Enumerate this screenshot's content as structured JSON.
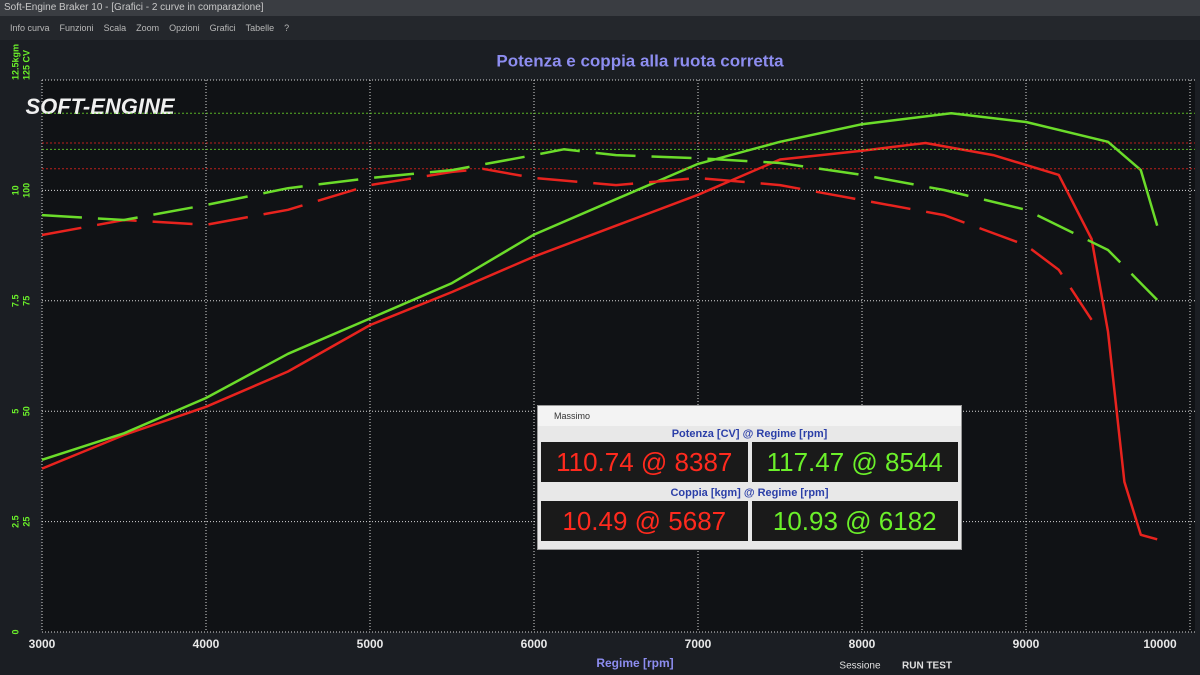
{
  "window": {
    "title": "Soft-Engine Braker 10 - [Grafici - 2 curve in comparazione]",
    "menu": [
      "Info curva",
      "Funzioni",
      "Scala",
      "Zoom",
      "Opzioni",
      "Grafici",
      "Tabelle",
      "?"
    ],
    "logo": "SOFT-ENGINE"
  },
  "chart_data": {
    "type": "line",
    "title": "Potenza e coppia alla ruota corretta",
    "x_label": "Regime [rpm]",
    "xlim": [
      3000,
      10000
    ],
    "xticks": [
      3000,
      4000,
      5000,
      6000,
      7000,
      8000,
      9000,
      10000
    ],
    "ylim": [
      0,
      12.5
    ],
    "yticks": [
      0,
      2.5,
      5,
      7.5,
      10,
      {
        "value": 12.5,
        "label": "12.5kgm"
      }
    ],
    "y2lim": [
      0,
      125
    ],
    "y2ticks": [
      25,
      50,
      75,
      100,
      {
        "value": 125,
        "label": "125 CV"
      }
    ],
    "grid": true,
    "series": [
      {
        "color": "#e8231e",
        "style": "solid",
        "axis": "y2",
        "x": [
          3000,
          3500,
          4000,
          4500,
          5000,
          5500,
          6000,
          6500,
          7000,
          7500,
          8000,
          8387,
          8800,
          9200,
          9400,
          9500,
          9600,
          9700,
          9800
        ],
        "values": [
          37,
          44.6,
          51,
          59,
          69.5,
          77,
          85,
          92,
          99,
          107,
          109,
          110.74,
          108,
          103.5,
          89,
          68,
          34,
          22,
          21
        ]
      },
      {
        "color": "#6bdc2a",
        "style": "solid",
        "axis": "y2",
        "x": [
          3000,
          3500,
          4000,
          4500,
          5000,
          5500,
          6000,
          6500,
          7000,
          7500,
          8000,
          8544,
          9000,
          9500,
          9700,
          9800
        ],
        "values": [
          39,
          45,
          53,
          63,
          71,
          79,
          90,
          98,
          106,
          111,
          115,
          117.47,
          115.5,
          111,
          104.6,
          92
        ]
      },
      {
        "color": "#e8231e",
        "style": "dashed",
        "x": [
          3000,
          3500,
          4000,
          4500,
          5000,
          5500,
          5687,
          6000,
          6500,
          7000,
          7500,
          8000,
          8500,
          9000,
          9200,
          9400
        ],
        "values": [
          8.99,
          9.33,
          9.22,
          9.56,
          10.12,
          10.42,
          10.49,
          10.28,
          10.12,
          10.28,
          10.12,
          9.78,
          9.44,
          8.76,
          8.2,
          7.07
        ]
      },
      {
        "color": "#6bdc2a",
        "style": "dashed",
        "x": [
          3000,
          3500,
          4000,
          4500,
          5000,
          5500,
          6000,
          6182,
          6500,
          7000,
          7500,
          8000,
          8500,
          9000,
          9500,
          9800
        ],
        "values": [
          9.44,
          9.33,
          9.67,
          10.05,
          10.28,
          10.46,
          10.8,
          10.93,
          10.8,
          10.73,
          10.62,
          10.35,
          10.01,
          9.56,
          8.65,
          7.52
        ]
      }
    ]
  },
  "popup": {
    "title": "Massimo",
    "power_header": "Potenza  [CV] @ Regime [rpm]",
    "power": [
      "110.74 @ 8387",
      "117.47 @ 8544"
    ],
    "torque_header": "Coppia  [kgm] @ Regime [rpm]",
    "torque": [
      "10.49 @ 5687",
      "10.93 @ 6182"
    ]
  },
  "status": {
    "session_label": "Sessione",
    "session": "RUN TEST"
  }
}
